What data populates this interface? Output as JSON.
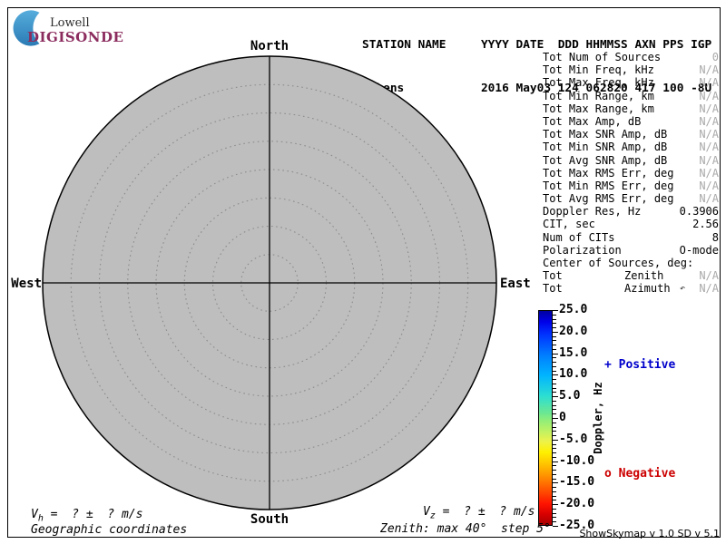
{
  "logo": {
    "top": "Lowell",
    "bottom": "DIGISONDE",
    "accent_color": "#3E97CC",
    "brand_color": "#8B2C5E"
  },
  "header": {
    "row1": "STATION NAME     YYYY DATE  DDD HHMMSS AXN PPS IGP",
    "row2": "Athens           2016 May03 124 062820 417 100 -8U"
  },
  "compass": {
    "north": "North",
    "south": "South",
    "west": "West",
    "east": "East"
  },
  "stats": {
    "rows": [
      {
        "label": "Tot Num of Sources",
        "value": "0",
        "muted": true
      },
      {
        "label": "Tot Min Freq, kHz",
        "value": "N/A",
        "muted": true
      },
      {
        "label": "Tot Max Freq, kHz",
        "value": "N/A",
        "muted": true
      },
      {
        "label": "Tot Min Range, km",
        "value": "N/A",
        "muted": true
      },
      {
        "label": "Tot Max Range, km",
        "value": "N/A",
        "muted": true
      },
      {
        "label": "Tot Max Amp, dB",
        "value": "N/A",
        "muted": true
      },
      {
        "label": "Tot Max SNR Amp, dB",
        "value": "N/A",
        "muted": true
      },
      {
        "label": "Tot Min SNR Amp, dB",
        "value": "N/A",
        "muted": true
      },
      {
        "label": "Tot Avg SNR Amp, dB",
        "value": "N/A",
        "muted": true
      },
      {
        "label": "Tot Max RMS Err, deg",
        "value": "N/A",
        "muted": true
      },
      {
        "label": "Tot Min RMS Err, deg",
        "value": "N/A",
        "muted": true
      },
      {
        "label": "Tot Avg RMS Err, deg",
        "value": "N/A",
        "muted": true
      },
      {
        "label": "Doppler Res, Hz",
        "value": "0.3906",
        "muted": false
      },
      {
        "label": "CIT, sec",
        "value": "2.56",
        "muted": false
      },
      {
        "label": "Num of CITs",
        "value": "8",
        "muted": false
      },
      {
        "label": "Polarization",
        "value": "O-mode",
        "muted": false
      },
      {
        "label": "Center of Sources, deg:",
        "value": "",
        "muted": false
      },
      {
        "label": "Tot",
        "mid": "Zenith",
        "value": "N/A",
        "muted": true
      },
      {
        "label": "Tot",
        "mid": "Azimuth",
        "value": "N/A",
        "muted": true,
        "cursor": "↶"
      }
    ]
  },
  "colorbar": {
    "title": "Doppler, Hz",
    "max": 25.0,
    "min": -25.0,
    "ticks": [
      "25.0",
      "20.0",
      "15.0",
      "10.0",
      "5.0",
      "0",
      "-5.0",
      "-10.0",
      "-15.0",
      "-20.0",
      "-25.0"
    ],
    "positive_label": "+ Positive",
    "negative_label": "o Negative",
    "positive_color": "#0000CC",
    "negative_color": "#CC0000"
  },
  "plot": {
    "zenith_max_deg": 40,
    "zenith_step_deg": 5,
    "rings": 8,
    "fill_color": "#BEBEBE"
  },
  "footer": {
    "vh_var": "V",
    "vh_sub": "h",
    "vh_rest": " =  ? ±  ? m/s",
    "vz_var": "V",
    "vz_sub": "z",
    "vz_rest": " =  ? ±  ? m/s",
    "coords": "Geographic coordinates",
    "zenith": "Zenith: max 40°  step 5°",
    "version": "ShowSkymap v 1.0   SD v 5.1"
  }
}
